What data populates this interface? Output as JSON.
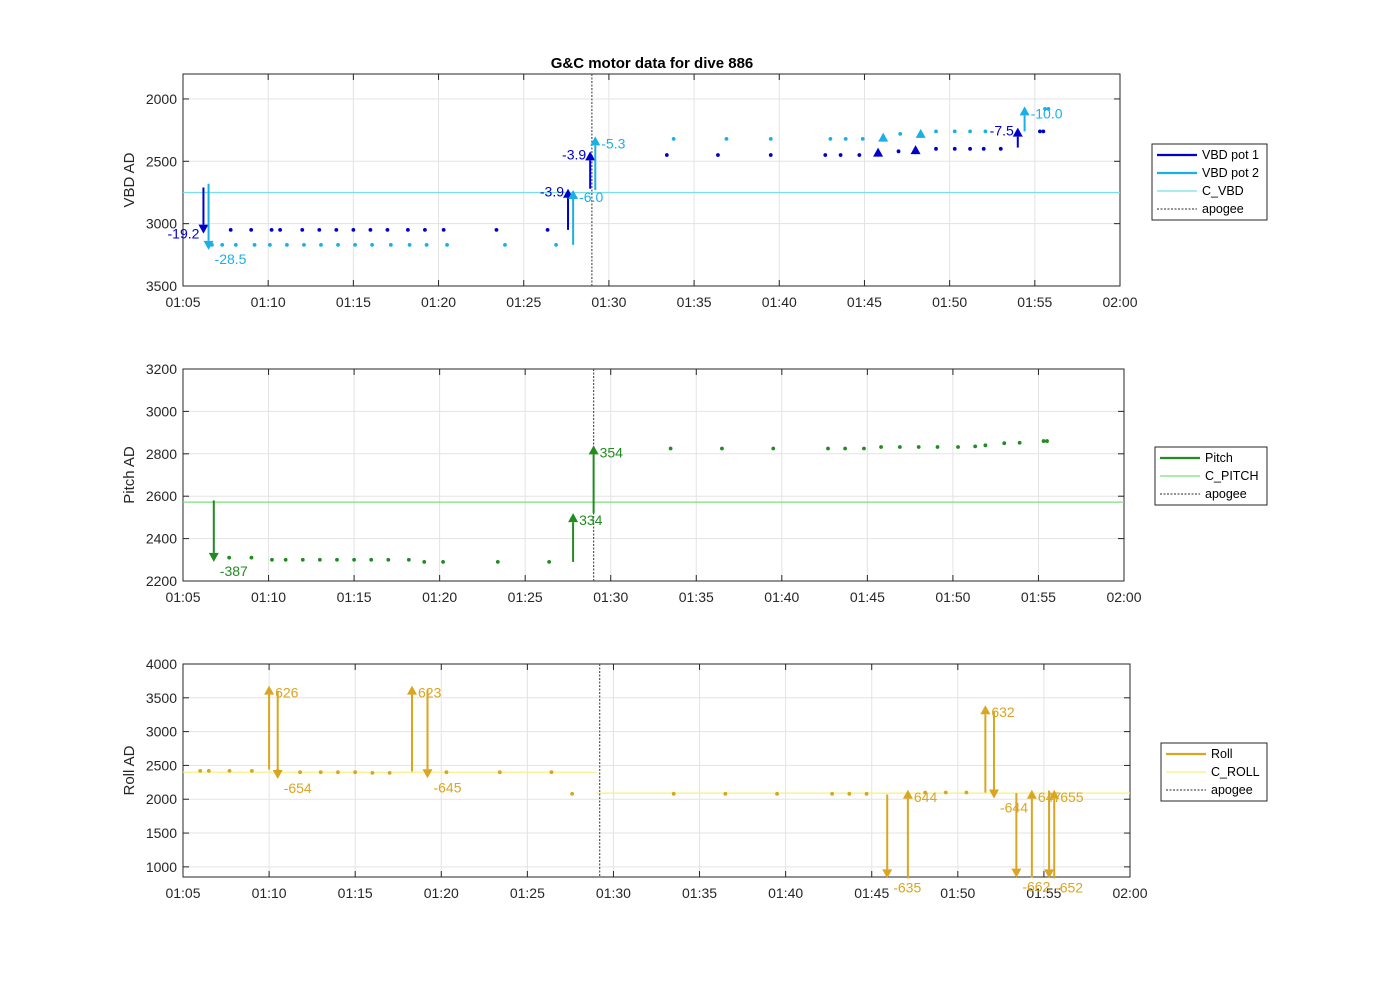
{
  "chart_data": {
    "title": "G&C motor data for dive 886",
    "panels": [
      {
        "id": "vbd",
        "type": "scatter",
        "ylabel": "VBD AD",
        "xlim": [
          "01:05",
          "02:00"
        ],
        "ylim": [
          3500,
          1800
        ],
        "y_reversed": true,
        "grid": true,
        "xticks": [
          "01:05",
          "01:10",
          "01:15",
          "01:20",
          "01:25",
          "01:30",
          "01:35",
          "01:40",
          "01:45",
          "01:50",
          "01:55",
          "02:00"
        ],
        "yticks": [
          2000,
          2500,
          3000,
          3500
        ],
        "legend": {
          "placement": "right",
          "entries": [
            "VBD pot 1",
            "VBD pot 2",
            "C_VBD",
            "apogee"
          ]
        },
        "colors": {
          "pot1": "#0000cd",
          "pot2": "#1ab0e6",
          "ref": "#76dfe9",
          "apogee": "#555555"
        },
        "reference": {
          "name": "C_VBD",
          "value": 2750
        },
        "apogee": "01:29.0",
        "series": [
          {
            "name": "VBD pot 1",
            "x": [
              "01:07.8",
              "01:09.0",
              "01:10.2",
              "01:10.7",
              "01:12.0",
              "01:13.0",
              "01:14.0",
              "01:15.0",
              "01:16.0",
              "01:17.0",
              "01:18.2",
              "01:19.2",
              "01:20.3",
              "01:23.4",
              "01:26.4",
              "01:33.4",
              "01:36.4",
              "01:39.5",
              "01:42.7",
              "01:43.6",
              "01:44.7",
              "01:47.0",
              "01:49.2",
              "01:50.3",
              "01:51.2",
              "01:52.0",
              "01:53.0",
              "01:55.3",
              "01:55.5"
            ],
            "values": [
              3050,
              3050,
              3050,
              3050,
              3050,
              3050,
              3050,
              3050,
              3050,
              3050,
              3050,
              3050,
              3050,
              3050,
              3050,
              2450,
              2450,
              2450,
              2450,
              2450,
              2450,
              2420,
              2400,
              2400,
              2400,
              2400,
              2400,
              2260,
              2260
            ]
          },
          {
            "name": "VBD pot 2",
            "x": [
              "01:06.7",
              "01:07.3",
              "01:08.1",
              "01:09.2",
              "01:10.1",
              "01:11.1",
              "01:12.1",
              "01:13.1",
              "01:14.1",
              "01:15.1",
              "01:16.1",
              "01:17.2",
              "01:18.3",
              "01:19.3",
              "01:20.5",
              "01:23.9",
              "01:26.9",
              "01:33.8",
              "01:36.9",
              "01:39.5",
              "01:43.0",
              "01:43.9",
              "01:44.9",
              "01:47.1",
              "01:49.2",
              "01:50.3",
              "01:51.2",
              "01:52.1",
              "01:55.6",
              "01:55.8"
            ],
            "values": [
              3170,
              3170,
              3170,
              3170,
              3170,
              3170,
              3170,
              3170,
              3170,
              3170,
              3170,
              3170,
              3170,
              3170,
              3170,
              3170,
              3170,
              2320,
              2320,
              2320,
              2320,
              2320,
              2320,
              2280,
              2260,
              2260,
              2260,
              2260,
              2080,
              2080
            ]
          }
        ],
        "moves": [
          {
            "series": "VBD pot 1",
            "x": "01:06.2",
            "from": 2710,
            "to": 3080,
            "label": "-19.2"
          },
          {
            "series": "VBD pot 2",
            "x": "01:06.5",
            "from": 2680,
            "to": 3210,
            "label": "-28.5"
          },
          {
            "series": "VBD pot 1",
            "x": "01:27.6",
            "from": 3050,
            "to": 2720,
            "label": "-3.9"
          },
          {
            "series": "VBD pot 2",
            "x": "01:27.9",
            "from": 3170,
            "to": 2730,
            "label": "-6.0"
          },
          {
            "series": "VBD pot 1",
            "x": "01:28.9",
            "from": 2720,
            "to": 2420,
            "label": "-3.9"
          },
          {
            "series": "VBD pot 2",
            "x": "01:29.2",
            "from": 2730,
            "to": 2300,
            "label": "-5.3"
          },
          {
            "series": "VBD pot 1",
            "x": "01:45.8",
            "from": 2420,
            "to": 2390,
            "label": ""
          },
          {
            "series": "VBD pot 2",
            "x": "01:46.1",
            "from": 2320,
            "to": 2270,
            "label": ""
          },
          {
            "series": "VBD pot 1",
            "x": "01:48.0",
            "from": 2400,
            "to": 2370,
            "label": ""
          },
          {
            "series": "VBD pot 2",
            "x": "01:48.3",
            "from": 2280,
            "to": 2240,
            "label": ""
          },
          {
            "series": "VBD pot 1",
            "x": "01:54.0",
            "from": 2390,
            "to": 2230,
            "label": "-7.5"
          },
          {
            "series": "VBD pot 2",
            "x": "01:54.4",
            "from": 2260,
            "to": 2060,
            "label": "-10.0"
          }
        ]
      },
      {
        "id": "pitch",
        "type": "scatter",
        "ylabel": "Pitch AD",
        "xlim": [
          "01:05",
          "02:00"
        ],
        "ylim": [
          2200,
          3200
        ],
        "grid": true,
        "xticks": [
          "01:05",
          "01:10",
          "01:15",
          "01:20",
          "01:25",
          "01:30",
          "01:35",
          "01:40",
          "01:45",
          "01:50",
          "01:55",
          "02:00"
        ],
        "yticks": [
          2200,
          2400,
          2600,
          2800,
          3000,
          3200
        ],
        "legend": {
          "placement": "right",
          "entries": [
            "Pitch",
            "C_PITCH",
            "apogee"
          ]
        },
        "colors": {
          "main": "#228b22",
          "ref": "#7be07b",
          "apogee": "#555555"
        },
        "reference": {
          "name": "C_PITCH",
          "value": 2572
        },
        "apogee": "01:29.0",
        "series": [
          {
            "name": "Pitch",
            "x": [
              "01:07.7",
              "01:09.0",
              "01:10.2",
              "01:11.0",
              "01:12.0",
              "01:13.0",
              "01:14.0",
              "01:15.0",
              "01:16.0",
              "01:17.0",
              "01:18.2",
              "01:19.1",
              "01:20.2",
              "01:23.4",
              "01:26.4",
              "01:33.5",
              "01:36.5",
              "01:39.5",
              "01:42.7",
              "01:43.7",
              "01:44.8",
              "01:45.8",
              "01:46.9",
              "01:48.0",
              "01:49.1",
              "01:50.3",
              "01:51.3",
              "01:51.9",
              "01:53.0",
              "01:53.9",
              "01:55.3",
              "01:55.5"
            ],
            "values": [
              2310,
              2310,
              2300,
              2300,
              2300,
              2300,
              2300,
              2300,
              2300,
              2300,
              2300,
              2290,
              2290,
              2290,
              2290,
              2825,
              2825,
              2825,
              2825,
              2825,
              2825,
              2832,
              2832,
              2832,
              2832,
              2832,
              2835,
              2840,
              2850,
              2852,
              2860,
              2860
            ]
          }
        ],
        "moves": [
          {
            "series": "Pitch",
            "x": "01:06.8",
            "from": 2580,
            "to": 2290,
            "label": "-387"
          },
          {
            "series": "Pitch",
            "x": "01:27.8",
            "from": 2290,
            "to": 2520,
            "label": "334"
          },
          {
            "series": "Pitch",
            "x": "01:29.0",
            "from": 2520,
            "to": 2840,
            "label": "354"
          }
        ]
      },
      {
        "id": "roll",
        "type": "scatter",
        "ylabel": "Roll AD",
        "xlim": [
          "01:05",
          "02:00"
        ],
        "ylim": [
          850,
          4000
        ],
        "grid": true,
        "xticks": [
          "01:05",
          "01:10",
          "01:15",
          "01:20",
          "01:25",
          "01:30",
          "01:35",
          "01:40",
          "01:45",
          "01:50",
          "01:55",
          "02:00"
        ],
        "yticks": [
          1000,
          1500,
          2000,
          2500,
          3000,
          3500,
          4000
        ],
        "legend": {
          "placement": "right",
          "entries": [
            "Roll",
            "C_ROLL",
            "apogee"
          ]
        },
        "colors": {
          "main": "#daa520",
          "ref": "#f7f07a",
          "apogee": "#555555"
        },
        "reference_segments": [
          {
            "name": "C_ROLL",
            "value": 2400,
            "x": [
              "01:05",
              "01:29"
            ]
          },
          {
            "name": "C_ROLL",
            "value": 2090,
            "x": [
              "01:29",
              "02:00"
            ]
          }
        ],
        "apogee": "01:29.2",
        "series": [
          {
            "name": "Roll",
            "x": [
              "01:06.0",
              "01:06.5",
              "01:07.7",
              "01:09.0",
              "01:10.5",
              "01:11.8",
              "01:13.0",
              "01:14.0",
              "01:15.0",
              "01:16.0",
              "01:17.0",
              "01:20.3",
              "01:23.4",
              "01:26.4",
              "01:27.6",
              "01:33.5",
              "01:36.5",
              "01:39.5",
              "01:42.7",
              "01:43.7",
              "01:44.7",
              "01:48.1",
              "01:49.3",
              "01:50.5"
            ],
            "values": [
              2420,
              2420,
              2420,
              2420,
              2420,
              2400,
              2400,
              2400,
              2400,
              2390,
              2390,
              2400,
              2400,
              2400,
              2080,
              2080,
              2080,
              2080,
              2080,
              2080,
              2080,
              2100,
              2100,
              2100
            ]
          }
        ],
        "moves": [
          {
            "series": "Roll",
            "x": "01:10.0",
            "from": 2440,
            "to": 3680,
            "label": "626"
          },
          {
            "series": "Roll",
            "x": "01:10.5",
            "from": 3600,
            "to": 2300,
            "label": "-654"
          },
          {
            "series": "Roll",
            "x": "01:18.3",
            "from": 2410,
            "to": 3680,
            "label": "623"
          },
          {
            "series": "Roll",
            "x": "01:19.2",
            "from": 3620,
            "to": 2310,
            "label": "-645"
          },
          {
            "series": "Roll",
            "x": "01:45.9",
            "from": 2070,
            "to": 830,
            "label": "-635"
          },
          {
            "series": "Roll",
            "x": "01:47.1",
            "from": 830,
            "to": 2140,
            "label": "644"
          },
          {
            "series": "Roll",
            "x": "01:51.6",
            "from": 2100,
            "to": 3390,
            "label": "632"
          },
          {
            "series": "Roll",
            "x": "01:52.1",
            "from": 3300,
            "to": 2010,
            "label": "-644"
          },
          {
            "series": "Roll",
            "x": "01:53.4",
            "from": 2090,
            "to": 840,
            "label": "-662"
          },
          {
            "series": "Roll",
            "x": "01:54.3",
            "from": 840,
            "to": 2140,
            "label": "647"
          },
          {
            "series": "Roll",
            "x": "01:55.3",
            "from": 2130,
            "to": 830,
            "label": "-652"
          },
          {
            "series": "Roll",
            "x": "01:55.6",
            "from": 830,
            "to": 2140,
            "label": "655"
          }
        ]
      }
    ]
  }
}
